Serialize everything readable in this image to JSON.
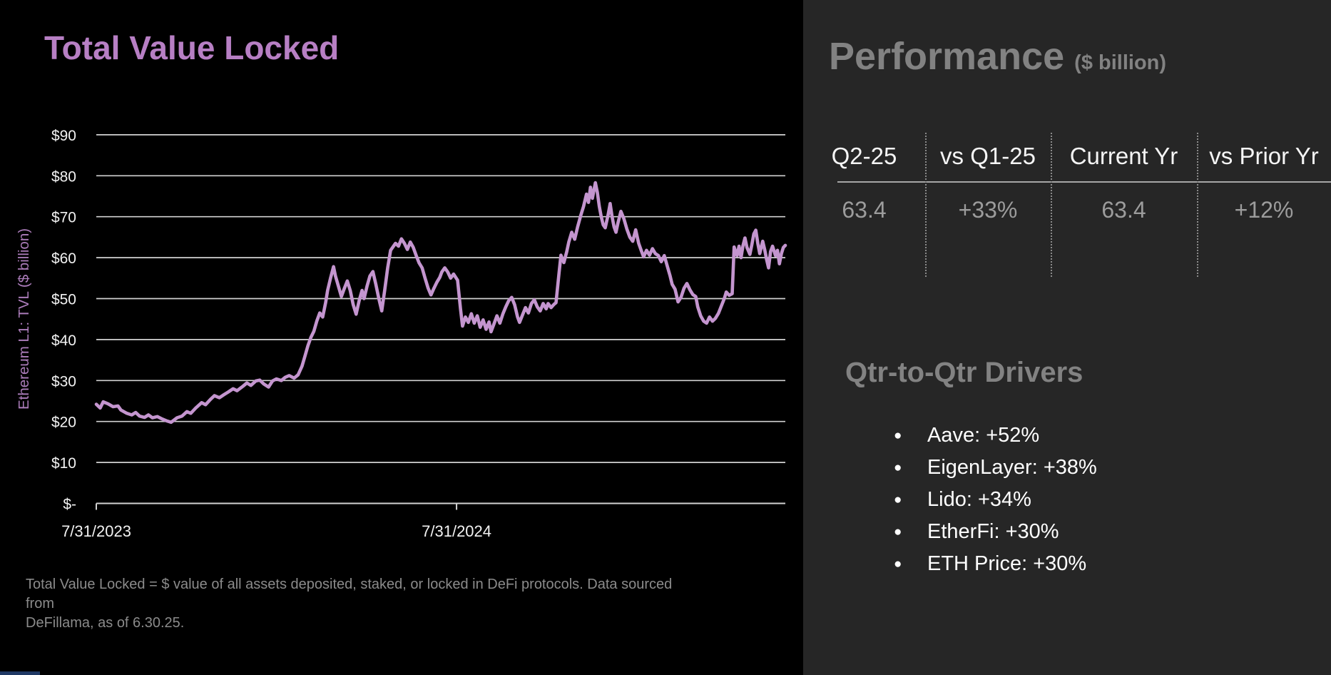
{
  "left_panel": {
    "title": "Total Value Locked",
    "footnote_line1": "Total Value Locked = $ value of all assets deposited, staked, or locked in DeFi protocols. Data sourced from",
    "footnote_line2": "DeFillama, as of 6.30.25."
  },
  "chart_data": {
    "type": "line",
    "title": "Total Value Locked",
    "ylabel": "Ethereum L1: TVL ($ billion)",
    "series_name": "Ethereum L1 TVL",
    "ylim": [
      0,
      90
    ],
    "grid": true,
    "y_ticks": [
      {
        "label": "$90",
        "value": 90
      },
      {
        "label": "$80",
        "value": 80
      },
      {
        "label": "$70",
        "value": 70
      },
      {
        "label": "$60",
        "value": 60
      },
      {
        "label": "$50",
        "value": 50
      },
      {
        "label": "$40",
        "value": 40
      },
      {
        "label": "$30",
        "value": 30
      },
      {
        "label": "$20",
        "value": 20
      },
      {
        "label": "$10",
        "value": 10
      },
      {
        "label": "$-",
        "value": 0
      }
    ],
    "x_range_days": 700,
    "x_start": "7/31/2023",
    "x_end": "6/30/2025",
    "x_ticks": [
      {
        "label": "7/31/2023",
        "day": 0
      },
      {
        "label": "7/31/2024",
        "day": 366
      }
    ],
    "points": [
      [
        0,
        24.2
      ],
      [
        4,
        23.3
      ],
      [
        7,
        24.8
      ],
      [
        12,
        24.3
      ],
      [
        17,
        23.6
      ],
      [
        22,
        23.8
      ],
      [
        25,
        22.8
      ],
      [
        31,
        22.0
      ],
      [
        36,
        21.6
      ],
      [
        40,
        22.2
      ],
      [
        44,
        21.3
      ],
      [
        49,
        21.0
      ],
      [
        53,
        21.6
      ],
      [
        57,
        20.9
      ],
      [
        62,
        21.2
      ],
      [
        67,
        20.6
      ],
      [
        72,
        20.1
      ],
      [
        76,
        19.8
      ],
      [
        82,
        20.9
      ],
      [
        87,
        21.3
      ],
      [
        92,
        22.4
      ],
      [
        96,
        22.0
      ],
      [
        101,
        23.3
      ],
      [
        107,
        24.6
      ],
      [
        111,
        24.1
      ],
      [
        116,
        25.4
      ],
      [
        120,
        26.3
      ],
      [
        125,
        25.8
      ],
      [
        130,
        26.6
      ],
      [
        134,
        27.2
      ],
      [
        139,
        28.0
      ],
      [
        143,
        27.5
      ],
      [
        149,
        28.6
      ],
      [
        153,
        29.4
      ],
      [
        157,
        28.8
      ],
      [
        162,
        29.9
      ],
      [
        166,
        30.1
      ],
      [
        170,
        29.2
      ],
      [
        175,
        28.4
      ],
      [
        179,
        29.9
      ],
      [
        183,
        30.4
      ],
      [
        188,
        30.0
      ],
      [
        192,
        30.8
      ],
      [
        196,
        31.2
      ],
      [
        201,
        30.6
      ],
      [
        205,
        31.4
      ],
      [
        209,
        33.5
      ],
      [
        212,
        36.0
      ],
      [
        215,
        38.5
      ],
      [
        218,
        40.5
      ],
      [
        221,
        42.0
      ],
      [
        224,
        44.5
      ],
      [
        227,
        46.5
      ],
      [
        230,
        45.5
      ],
      [
        233,
        49.0
      ],
      [
        235,
        52.0
      ],
      [
        238,
        55.0
      ],
      [
        241,
        57.8
      ],
      [
        243,
        55.5
      ],
      [
        246,
        53.0
      ],
      [
        249,
        50.5
      ],
      [
        252,
        52.5
      ],
      [
        255,
        54.3
      ],
      [
        258,
        52.0
      ],
      [
        261,
        48.5
      ],
      [
        264,
        46.2
      ],
      [
        267,
        49.5
      ],
      [
        270,
        52.0
      ],
      [
        272,
        50.0
      ],
      [
        275,
        53.0
      ],
      [
        278,
        55.5
      ],
      [
        281,
        56.6
      ],
      [
        284,
        53.5
      ],
      [
        287,
        50.0
      ],
      [
        290,
        47.0
      ],
      [
        293,
        52.0
      ],
      [
        296,
        57.5
      ],
      [
        299,
        61.8
      ],
      [
        301,
        62.5
      ],
      [
        304,
        63.5
      ],
      [
        307,
        62.8
      ],
      [
        310,
        64.6
      ],
      [
        313,
        63.5
      ],
      [
        316,
        62.0
      ],
      [
        319,
        63.8
      ],
      [
        322,
        62.5
      ],
      [
        325,
        60.5
      ],
      [
        328,
        58.7
      ],
      [
        331,
        57.5
      ],
      [
        334,
        55.0
      ],
      [
        337,
        52.6
      ],
      [
        340,
        50.9
      ],
      [
        343,
        52.5
      ],
      [
        346,
        54.0
      ],
      [
        349,
        55.2
      ],
      [
        351,
        56.5
      ],
      [
        354,
        57.5
      ],
      [
        357,
        56.5
      ],
      [
        360,
        55.0
      ],
      [
        363,
        56.0
      ],
      [
        367,
        54.5
      ],
      [
        370,
        47.5
      ],
      [
        372,
        43.3
      ],
      [
        375,
        45.5
      ],
      [
        378,
        44.2
      ],
      [
        381,
        46.3
      ],
      [
        384,
        44.0
      ],
      [
        387,
        45.8
      ],
      [
        390,
        43.0
      ],
      [
        393,
        44.8
      ],
      [
        396,
        42.5
      ],
      [
        399,
        44.3
      ],
      [
        401,
        41.9
      ],
      [
        404,
        43.8
      ],
      [
        407,
        45.8
      ],
      [
        410,
        44.0
      ],
      [
        413,
        46.2
      ],
      [
        416,
        48.0
      ],
      [
        419,
        49.5
      ],
      [
        422,
        50.3
      ],
      [
        425,
        48.5
      ],
      [
        428,
        45.5
      ],
      [
        430,
        44.2
      ],
      [
        433,
        46.0
      ],
      [
        436,
        47.8
      ],
      [
        439,
        46.5
      ],
      [
        442,
        48.8
      ],
      [
        445,
        49.7
      ],
      [
        448,
        48.0
      ],
      [
        451,
        47.0
      ],
      [
        454,
        48.8
      ],
      [
        457,
        47.5
      ],
      [
        459,
        48.8
      ],
      [
        462,
        47.8
      ],
      [
        465,
        48.6
      ],
      [
        467,
        49.0
      ],
      [
        470,
        56.0
      ],
      [
        472,
        60.6
      ],
      [
        475,
        58.8
      ],
      [
        478,
        61.5
      ],
      [
        480,
        63.8
      ],
      [
        483,
        66.2
      ],
      [
        486,
        64.5
      ],
      [
        489,
        67.5
      ],
      [
        492,
        70.2
      ],
      [
        495,
        72.5
      ],
      [
        498,
        75.5
      ],
      [
        500,
        73.5
      ],
      [
        502,
        77.2
      ],
      [
        504,
        74.5
      ],
      [
        507,
        78.3
      ],
      [
        509,
        76.0
      ],
      [
        511,
        72.5
      ],
      [
        513,
        70.0
      ],
      [
        515,
        68.0
      ],
      [
        517,
        67.3
      ],
      [
        520,
        70.5
      ],
      [
        522,
        73.2
      ],
      [
        524,
        70.0
      ],
      [
        526,
        67.5
      ],
      [
        528,
        66.2
      ],
      [
        530,
        68.5
      ],
      [
        533,
        71.3
      ],
      [
        536,
        69.5
      ],
      [
        539,
        67.0
      ],
      [
        542,
        65.0
      ],
      [
        545,
        64.0
      ],
      [
        548,
        66.8
      ],
      [
        551,
        63.5
      ],
      [
        554,
        61.5
      ],
      [
        556,
        60.2
      ],
      [
        559,
        61.8
      ],
      [
        562,
        60.6
      ],
      [
        565,
        62.2
      ],
      [
        568,
        61.0
      ],
      [
        571,
        60.5
      ],
      [
        574,
        59.0
      ],
      [
        577,
        60.5
      ],
      [
        580,
        58.0
      ],
      [
        583,
        55.5
      ],
      [
        585,
        53.5
      ],
      [
        588,
        52.3
      ],
      [
        591,
        49.2
      ],
      [
        594,
        50.3
      ],
      [
        597,
        52.5
      ],
      [
        600,
        53.7
      ],
      [
        603,
        52.2
      ],
      [
        606,
        51.0
      ],
      [
        609,
        50.5
      ],
      [
        611,
        48.0
      ],
      [
        614,
        45.8
      ],
      [
        617,
        44.5
      ],
      [
        620,
        44.0
      ],
      [
        623,
        45.5
      ],
      [
        626,
        44.5
      ],
      [
        629,
        45.2
      ],
      [
        632,
        46.4
      ],
      [
        635,
        48.2
      ],
      [
        638,
        50.0
      ],
      [
        640,
        51.6
      ],
      [
        643,
        50.8
      ],
      [
        646,
        51.2
      ],
      [
        648,
        62.6
      ],
      [
        651,
        60.5
      ],
      [
        653,
        62.8
      ],
      [
        655,
        60.0
      ],
      [
        657,
        63.0
      ],
      [
        659,
        64.8
      ],
      [
        661,
        62.5
      ],
      [
        664,
        60.8
      ],
      [
        666,
        63.2
      ],
      [
        668,
        65.8
      ],
      [
        670,
        66.7
      ],
      [
        672,
        63.5
      ],
      [
        674,
        61.0
      ],
      [
        677,
        64.0
      ],
      [
        679,
        62.0
      ],
      [
        681,
        59.5
      ],
      [
        683,
        57.5
      ],
      [
        685,
        61.5
      ],
      [
        687,
        62.8
      ],
      [
        690,
        60.5
      ],
      [
        692,
        61.8
      ],
      [
        694,
        58.5
      ],
      [
        696,
        61.0
      ],
      [
        698,
        62.5
      ],
      [
        700,
        63.0
      ]
    ]
  },
  "right_panel": {
    "heading": "Performance",
    "heading_sub": "($ billion)",
    "table": {
      "headers": [
        "Q2-25",
        "vs Q1-25",
        "Current Yr",
        "vs Prior Yr"
      ],
      "values": [
        "63.4",
        "+33%",
        "63.4",
        "+12%"
      ]
    },
    "drivers": {
      "heading": "Qtr-to-Qtr Drivers",
      "bullet_glyph": "●",
      "items": [
        "Aave: +52%",
        "EigenLayer: +38%",
        "Lido: +34%",
        "EtherFi: +30%",
        "ETH Price: +30%"
      ]
    }
  },
  "colors": {
    "left_bg": "#000000",
    "right_bg": "#262626",
    "title_purple": "#b77fc4",
    "line_purple": "#c495cf",
    "ylabel_purple": "#ab7cba",
    "gridline": "#d2d2d2",
    "axis_text": "#f2f2f2",
    "muted_gray": "#8b8b8b",
    "heading_gray": "#828282",
    "value_gray": "#9c9c9c",
    "bullet_white": "#ffffff",
    "accent_blue_sliver": "#1f3864"
  }
}
